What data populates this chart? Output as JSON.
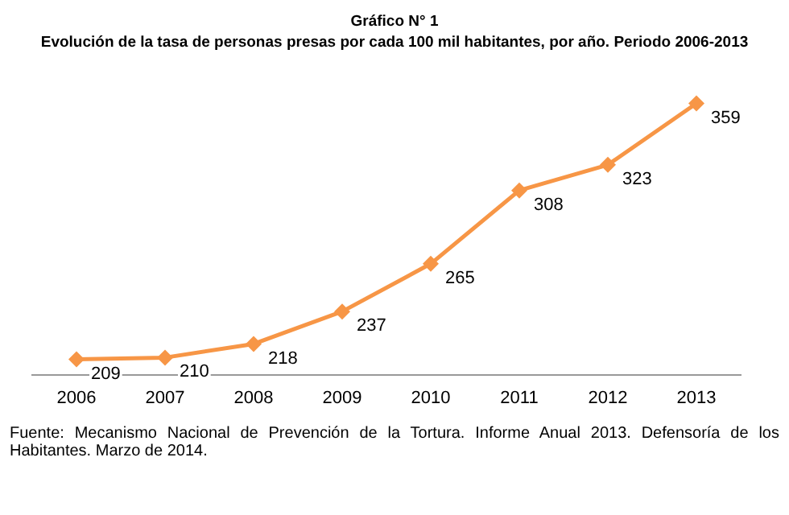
{
  "chart_data": {
    "type": "line",
    "title": "Gráfico N° 1",
    "subtitle": "Evolución de la tasa de personas presas por cada 100 mil habitantes, por año. Periodo 2006-2013",
    "categories": [
      "2006",
      "2007",
      "2008",
      "2009",
      "2010",
      "2011",
      "2012",
      "2013"
    ],
    "series": [
      {
        "color": "#f79646",
        "values": [
          209,
          210,
          218,
          237,
          265,
          308,
          323,
          359
        ]
      }
    ],
    "tick_labels": "x",
    "grid": false,
    "legend": false,
    "marker": "diamond",
    "line_style": "solid",
    "data_labels": true,
    "annotations": [
      "Fuente: Mecanismo Nacional de Prevención de la Tortura. Informe Anual 2013. Defensoría de los Habitantes. Marzo de 2014."
    ]
  }
}
